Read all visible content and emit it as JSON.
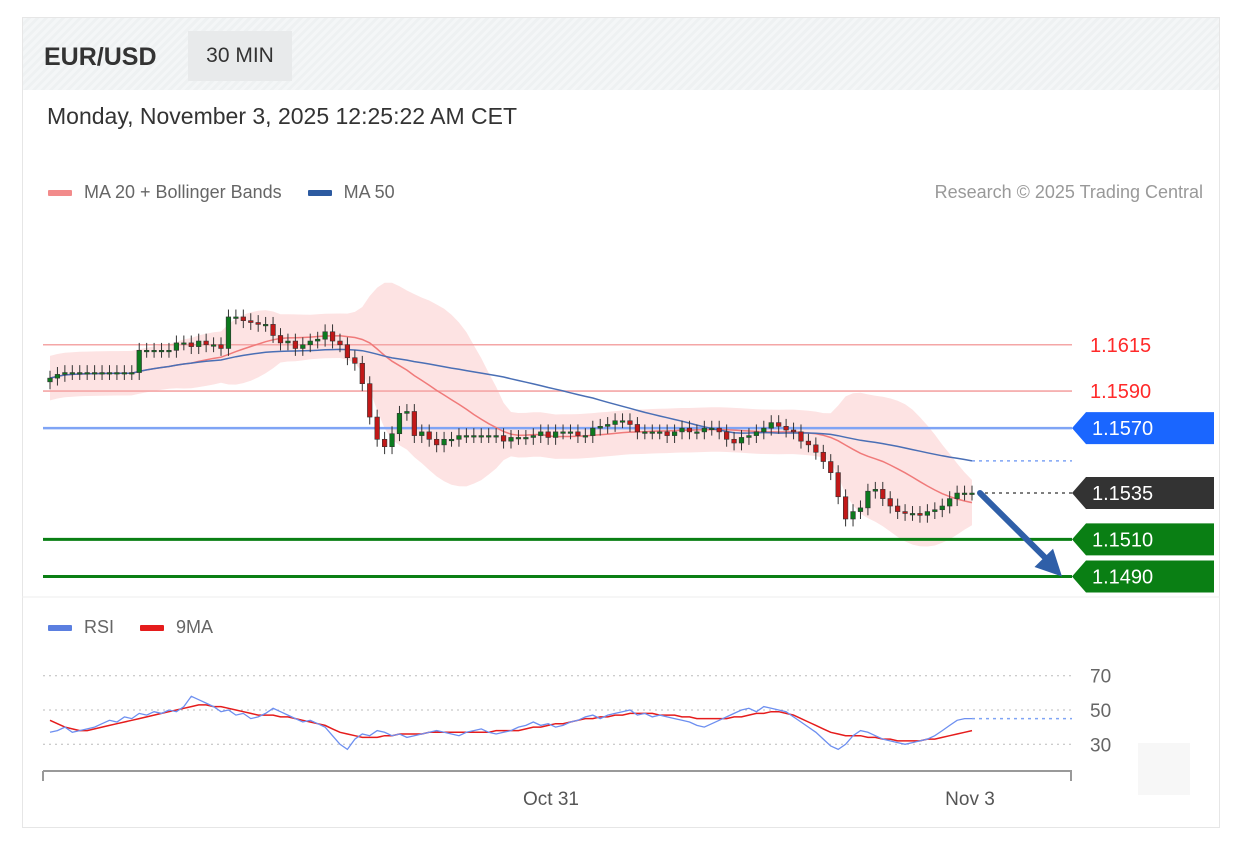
{
  "header": {
    "symbol": "EUR/USD",
    "timeframe": "30 MIN"
  },
  "datetime": "Monday, November 3, 2025 12:25:22 AM CET",
  "legend_price": [
    {
      "label": "MA 20 + Bollinger Bands",
      "color": "#f08080"
    },
    {
      "label": "MA 50",
      "color": "#2c5aa0"
    }
  ],
  "research": "Research © 2025 Trading Central",
  "legend_rsi": [
    {
      "label": "RSI",
      "color": "#5b7fe0"
    },
    {
      "label": "9MA",
      "color": "#e51c1c"
    }
  ],
  "chart_data": [
    {
      "type": "candlestick",
      "title": "EUR/USD",
      "ylim": [
        1.148,
        1.1685
      ],
      "levels": [
        {
          "value": "1.1615",
          "kind": "resistance",
          "color": "#ff2a2a"
        },
        {
          "value": "1.1590",
          "kind": "resistance",
          "color": "#ff2a2a"
        },
        {
          "value": "1.1570",
          "kind": "pivot",
          "color": "#1a66ff"
        },
        {
          "value": "1.1535",
          "kind": "last",
          "color": "#333333"
        },
        {
          "value": "1.1510",
          "kind": "support",
          "color": "#0a7f14"
        },
        {
          "value": "1.1490",
          "kind": "support",
          "color": "#0a7f14"
        }
      ],
      "close": [
        1.1597,
        1.1599,
        1.16,
        1.16,
        1.16,
        1.16,
        1.16,
        1.16,
        1.16,
        1.16,
        1.16,
        1.16,
        1.1612,
        1.1612,
        1.1612,
        1.1612,
        1.1612,
        1.1616,
        1.1616,
        1.1614,
        1.1617,
        1.1615,
        1.1615,
        1.1613,
        1.163,
        1.163,
        1.1628,
        1.1627,
        1.1626,
        1.1626,
        1.162,
        1.1616,
        1.1617,
        1.1613,
        1.1615,
        1.1617,
        1.1618,
        1.1622,
        1.1617,
        1.1615,
        1.1608,
        1.1605,
        1.1594,
        1.1576,
        1.1564,
        1.156,
        1.1567,
        1.1578,
        1.1579,
        1.1566,
        1.1568,
        1.1564,
        1.1561,
        1.1564,
        1.1564,
        1.1566,
        1.1566,
        1.1566,
        1.1566,
        1.1566,
        1.1566,
        1.1563,
        1.1565,
        1.1565,
        1.1565,
        1.1566,
        1.1568,
        1.1565,
        1.1568,
        1.1568,
        1.1568,
        1.1566,
        1.1566,
        1.157,
        1.1571,
        1.1572,
        1.1574,
        1.1574,
        1.1572,
        1.1568,
        1.1568,
        1.1568,
        1.1568,
        1.1566,
        1.1568,
        1.157,
        1.1568,
        1.1568,
        1.157,
        1.157,
        1.1568,
        1.1564,
        1.1562,
        1.1565,
        1.1566,
        1.1568,
        1.157,
        1.1573,
        1.1571,
        1.1569,
        1.1568,
        1.1563,
        1.1561,
        1.1557,
        1.1552,
        1.1546,
        1.1533,
        1.1521,
        1.1525,
        1.1527,
        1.1536,
        1.1537,
        1.1532,
        1.1528,
        1.1525,
        1.1524,
        1.1524,
        1.1523,
        1.1525,
        1.1526,
        1.1528,
        1.1532,
        1.1535,
        1.1535,
        1.1535
      ]
    },
    {
      "type": "line",
      "title": "RSI",
      "ylim": [
        15,
        85
      ],
      "yticks": [
        "70",
        "50",
        "30"
      ],
      "x_ticks": [
        "Oct 31",
        "Nov 3"
      ],
      "series": [
        {
          "name": "RSI",
          "values": [
            37,
            38,
            40,
            37,
            38,
            39,
            40,
            42,
            44,
            43,
            46,
            45,
            48,
            47,
            49,
            48,
            50,
            49,
            52,
            58,
            56,
            54,
            52,
            49,
            50,
            47,
            48,
            45,
            46,
            48,
            51,
            49,
            47,
            45,
            43,
            44,
            42,
            40,
            35,
            30,
            27,
            33,
            36,
            35,
            38,
            37,
            35,
            36,
            34,
            35,
            36,
            37,
            38,
            37,
            36,
            35,
            37,
            38,
            39,
            37,
            36,
            37,
            38,
            40,
            41,
            43,
            41,
            42,
            40,
            41,
            43,
            44,
            46,
            47,
            45,
            47,
            48,
            49,
            50,
            47,
            48,
            46,
            47,
            46,
            45,
            44,
            43,
            41,
            40,
            42,
            44,
            46,
            48,
            50,
            51,
            49,
            52,
            51,
            50,
            49,
            46,
            43,
            40,
            37,
            33,
            29,
            27,
            30,
            35,
            38,
            37,
            35,
            33,
            32,
            31,
            30,
            31,
            32,
            33,
            35,
            38,
            41,
            44,
            45,
            45
          ]
        },
        {
          "name": "9MA",
          "values": [
            44,
            42,
            40,
            39,
            38,
            38,
            39,
            40,
            41,
            42,
            43,
            44,
            45,
            46,
            47,
            48,
            49,
            50,
            51,
            52,
            53,
            53,
            52,
            52,
            51,
            50,
            49,
            48,
            47,
            47,
            47,
            46,
            46,
            45,
            44,
            43,
            42,
            41,
            39,
            37,
            36,
            35,
            34,
            34,
            34,
            35,
            35,
            36,
            36,
            36,
            36,
            37,
            37,
            37,
            37,
            37,
            37,
            37,
            37,
            37,
            38,
            38,
            38,
            38,
            39,
            40,
            40,
            41,
            42,
            42,
            43,
            44,
            45,
            45,
            46,
            46,
            47,
            47,
            48,
            48,
            48,
            48,
            47,
            47,
            47,
            46,
            46,
            45,
            45,
            45,
            45,
            45,
            46,
            46,
            47,
            48,
            48,
            49,
            49,
            48,
            47,
            45,
            43,
            41,
            39,
            37,
            36,
            35,
            35,
            35,
            34,
            34,
            33,
            33,
            32,
            32,
            32,
            32,
            33,
            33,
            34,
            35,
            36,
            37,
            38
          ]
        }
      ]
    }
  ]
}
